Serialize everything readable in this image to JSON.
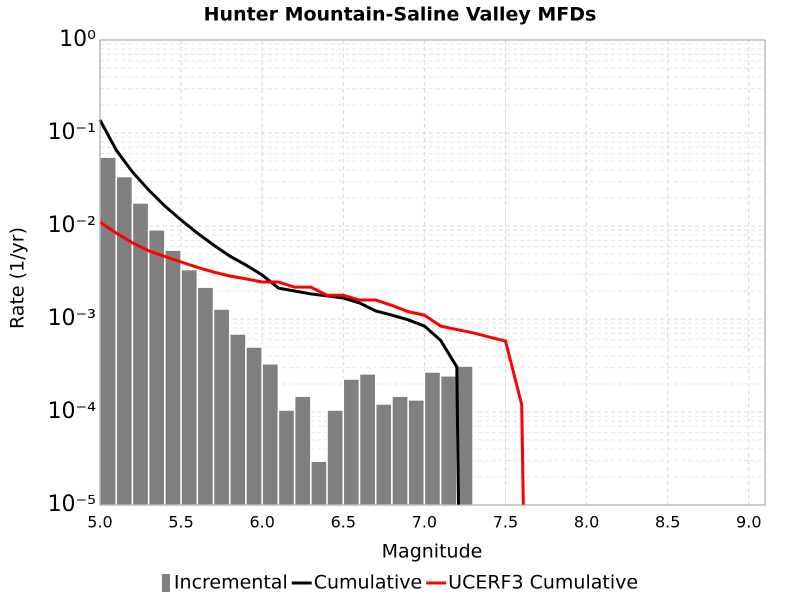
{
  "chart_data": {
    "type": "line",
    "title": "Hunter Mountain-Saline Valley MFDs",
    "xlabel": "Magnitude",
    "ylabel": "Rate (1/yr)",
    "xlim": [
      5.0,
      9.1
    ],
    "ylim": [
      1e-05,
      1
    ],
    "log_y": true,
    "grid": true,
    "legend": "bottom",
    "xticks": [
      {
        "value": 5.0,
        "label": "5.0"
      },
      {
        "value": 5.5,
        "label": "5.5"
      },
      {
        "value": 6.0,
        "label": "6.0"
      },
      {
        "value": 6.5,
        "label": "6.5"
      },
      {
        "value": 7.0,
        "label": "7.0"
      },
      {
        "value": 7.5,
        "label": "7.5"
      },
      {
        "value": 8.0,
        "label": "8.0"
      },
      {
        "value": 8.5,
        "label": "8.5"
      },
      {
        "value": 9.0,
        "label": "9.0"
      }
    ],
    "yticks": [
      {
        "value": 1,
        "label": "10⁰"
      },
      {
        "value": 0.1,
        "label": "10⁻¹"
      },
      {
        "value": 0.01,
        "label": "10⁻²"
      },
      {
        "value": 0.001,
        "label": "10⁻³"
      },
      {
        "value": 0.0001,
        "label": "10⁻⁴"
      },
      {
        "value": 1e-05,
        "label": "10⁻⁵"
      }
    ],
    "series": [
      {
        "name": "Incremental",
        "type": "histogram",
        "color": "#808080",
        "bins": [
          5.0,
          5.1,
          5.2,
          5.3,
          5.4,
          5.5,
          5.6,
          5.7,
          5.8,
          5.9,
          6.0,
          6.1,
          6.2,
          6.3,
          6.4,
          6.5,
          6.6,
          6.7,
          6.8,
          6.9,
          7.0,
          7.1,
          7.2,
          7.3
        ],
        "values": [
          0.055,
          0.034,
          0.0177,
          0.0091,
          0.0055,
          0.0034,
          0.0022,
          0.00128,
          0.00069,
          0.0005,
          0.00033,
          0.000105,
          0.000148,
          2.96e-05,
          0.000105,
          0.000226,
          0.000257,
          0.000122,
          0.000148,
          0.000135,
          0.000269,
          0.000245,
          0.000312
        ]
      },
      {
        "name": "Cumulative",
        "type": "line",
        "color": "#000000",
        "x": [
          5.0,
          5.1,
          5.2,
          5.3,
          5.4,
          5.5,
          5.6,
          5.7,
          5.8,
          5.9,
          6.0,
          6.1,
          6.2,
          6.3,
          6.4,
          6.5,
          6.6,
          6.7,
          6.8,
          6.9,
          7.0,
          7.1,
          7.2,
          7.21
        ],
        "values": [
          0.138,
          0.0656,
          0.0381,
          0.0244,
          0.0164,
          0.0116,
          0.0084,
          0.00625,
          0.00475,
          0.0038,
          0.00297,
          0.00215,
          0.002,
          0.00186,
          0.00177,
          0.00168,
          0.00149,
          0.00122,
          0.0011,
          0.00098,
          0.00084,
          0.00059,
          0.000305,
          1e-05
        ]
      },
      {
        "name": "UCERF3 Cumulative",
        "type": "line",
        "color": "#ff0000",
        "x": [
          5.0,
          5.1,
          5.2,
          5.3,
          5.4,
          5.5,
          5.6,
          5.7,
          5.8,
          5.9,
          6.0,
          6.1,
          6.2,
          6.3,
          6.4,
          6.5,
          6.6,
          6.7,
          6.8,
          6.9,
          7.0,
          7.1,
          7.2,
          7.3,
          7.4,
          7.5,
          7.6,
          7.61
        ],
        "values": [
          0.011,
          0.0084,
          0.0066,
          0.0054,
          0.0047,
          0.0041,
          0.0036,
          0.0032,
          0.0029,
          0.0027,
          0.0025,
          0.0025,
          0.0022,
          0.0022,
          0.0018,
          0.0018,
          0.0016,
          0.0016,
          0.0014,
          0.0012,
          0.0011,
          0.00084,
          0.00077,
          0.00071,
          0.00064,
          0.00058,
          0.00012,
          1e-05
        ]
      }
    ]
  }
}
